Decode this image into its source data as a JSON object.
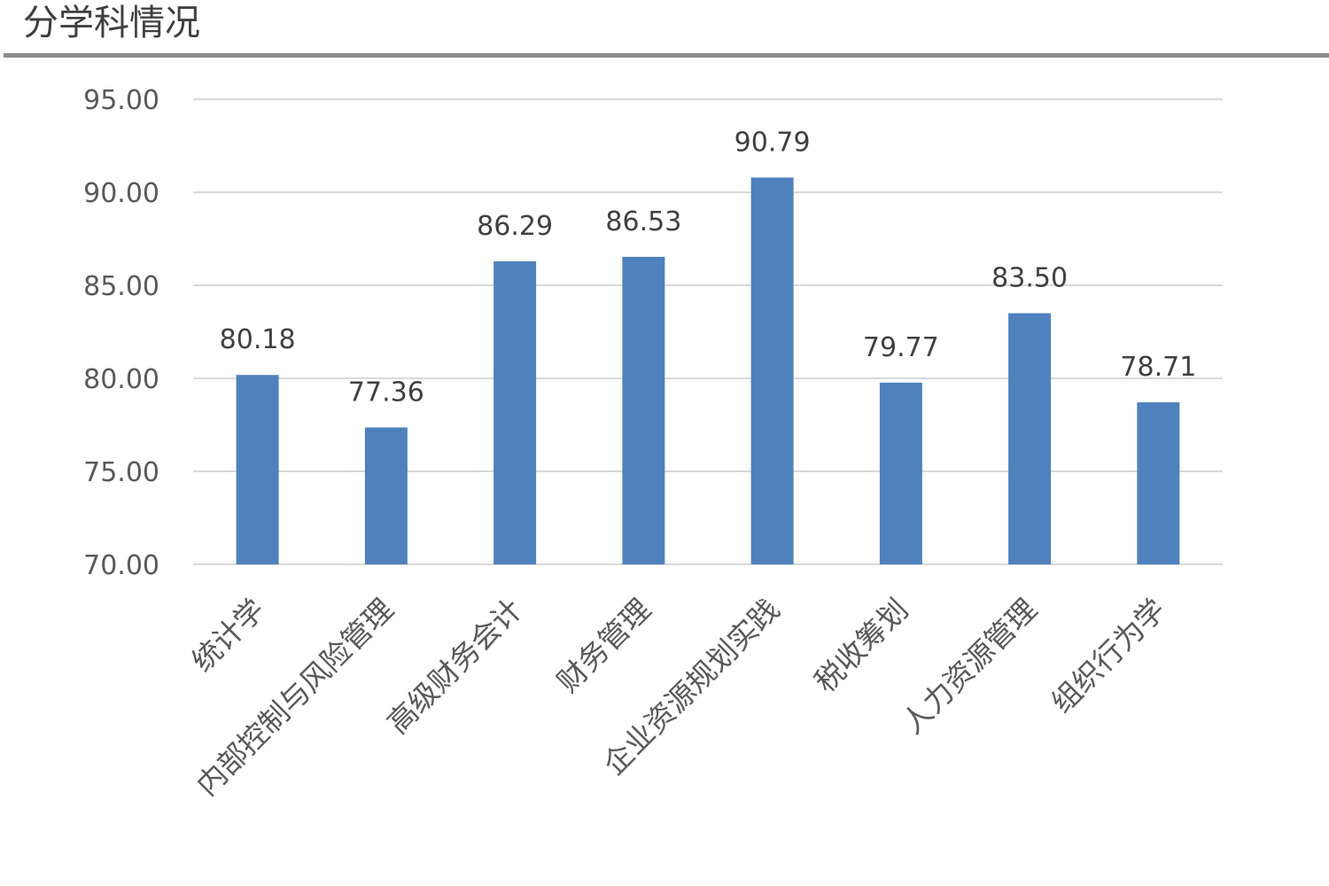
{
  "header": {
    "title": "分学科情况"
  },
  "chart_data": {
    "type": "bar",
    "title": "",
    "xlabel": "",
    "ylabel": "",
    "categories": [
      "统计学",
      "内部控制与风险管理",
      "高级财务会计",
      "财务管理",
      "企业资源规划实践",
      "税收筹划",
      "人力资源管理",
      "组织行为学"
    ],
    "values": [
      80.18,
      77.36,
      86.29,
      86.53,
      90.79,
      79.77,
      83.5,
      78.71
    ],
    "value_labels": [
      "80.18",
      "77.36",
      "86.29",
      "86.53",
      "90.79",
      "79.77",
      "83.50",
      "78.71"
    ],
    "ylim": [
      70,
      95
    ],
    "yticks": [
      70,
      75,
      80,
      85,
      90,
      95
    ],
    "ytick_labels": [
      "70.00",
      "75.00",
      "80.00",
      "85.00",
      "90.00",
      "95.00"
    ],
    "grid": true,
    "legend": "none",
    "bar_color": "#4f81bd",
    "grid_color": "#d9d9d9"
  }
}
